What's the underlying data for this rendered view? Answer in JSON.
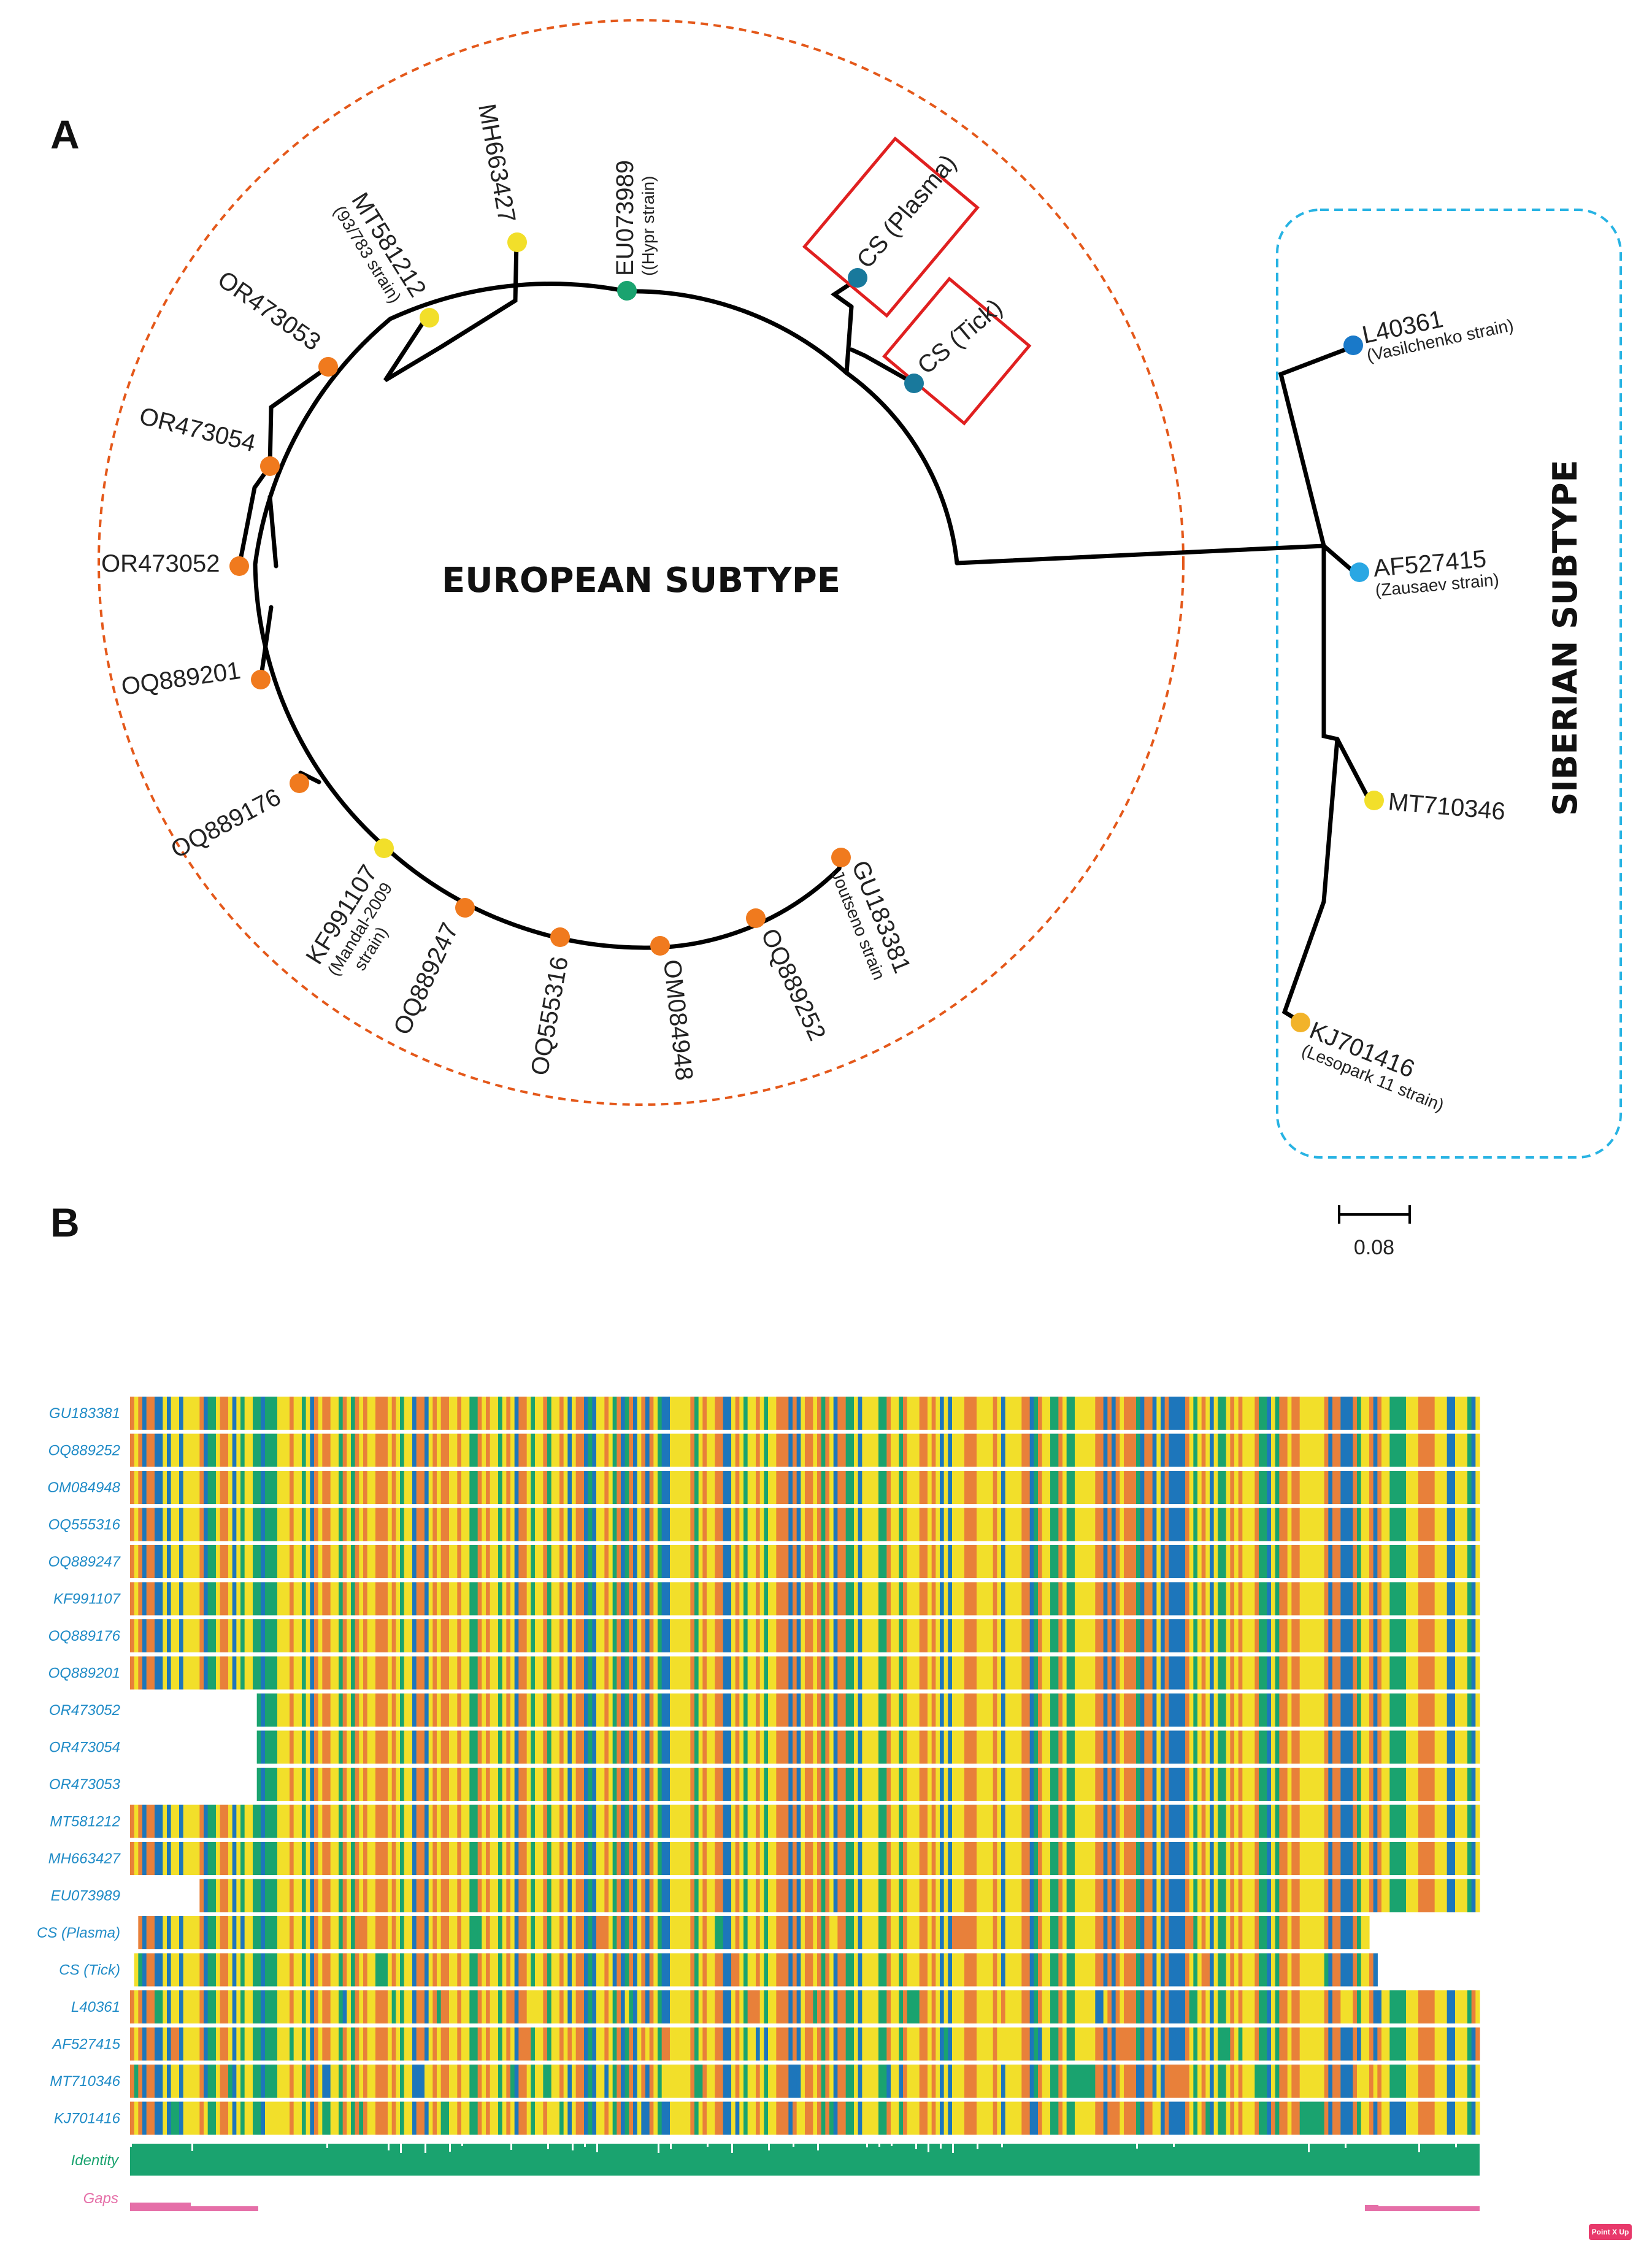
{
  "panel_a_label": "A",
  "panel_b_label": "B",
  "european_subtype_label": "EUROPEAN SUBTYPE",
  "siberian_subtype_label": "SIBERIAN SUBTYPE",
  "scale_bar_label": "0.08",
  "badge_text": "Point X Up",
  "colors": {
    "orange": "#f07a1e",
    "yellow": "#f2df2a",
    "green": "#1aa36f",
    "teal": "#19799c",
    "blue_dark": "#1979c9",
    "blue_light": "#2aa7e3",
    "euro_ring": "#e4581a",
    "siberian_box": "#27b3e3",
    "highlight_box": "#e02020"
  },
  "tree_tips": [
    {
      "id": "GU183381",
      "label": "GU183381",
      "sub": "Joutseno strain",
      "color": "orange"
    },
    {
      "id": "OQ889252",
      "label": "OQ889252",
      "sub": "",
      "color": "orange"
    },
    {
      "id": "OM084948",
      "label": "OM084948",
      "sub": "",
      "color": "orange"
    },
    {
      "id": "OQ555316",
      "label": "OQ555316",
      "sub": "",
      "color": "orange"
    },
    {
      "id": "OQ889247",
      "label": "OQ889247",
      "sub": "",
      "color": "orange"
    },
    {
      "id": "KF991107",
      "label": "KF991107",
      "sub": "(Mandal-2009",
      "sub2": "strain)",
      "color": "yellow"
    },
    {
      "id": "OQ889176",
      "label": "OQ889176",
      "sub": "",
      "color": "orange"
    },
    {
      "id": "OQ889201",
      "label": "OQ889201",
      "sub": "",
      "color": "orange"
    },
    {
      "id": "OR473052",
      "label": "OR473052",
      "sub": "",
      "color": "orange"
    },
    {
      "id": "OR473054",
      "label": "OR473054",
      "sub": "",
      "color": "orange"
    },
    {
      "id": "OR473053",
      "label": "OR473053",
      "sub": "",
      "color": "orange"
    },
    {
      "id": "MT581212",
      "label": "MT581212",
      "sub": "(93/783 strain)",
      "color": "yellow"
    },
    {
      "id": "MH663427",
      "label": "MH663427",
      "sub": "",
      "color": "yellow"
    },
    {
      "id": "EU073989",
      "label": "EU073989",
      "sub": "((Hypr strain)",
      "color": "green"
    },
    {
      "id": "CS_Plasma",
      "label": "CS (Plasma)",
      "sub": "",
      "color": "teal"
    },
    {
      "id": "CS_Tick",
      "label": "CS (Tick)",
      "sub": "",
      "color": "teal"
    },
    {
      "id": "L40361",
      "label": "L40361",
      "sub": "(Vasilchenko strain)",
      "color": "blue_dark"
    },
    {
      "id": "AF527415",
      "label": "AF527415",
      "sub": "(Zausaev strain)",
      "color": "blue_light"
    },
    {
      "id": "MT710346",
      "label": "MT710346",
      "sub": "",
      "color": "yellow"
    },
    {
      "id": "KJ701416",
      "label": "KJ701416",
      "sub": "(Lesopark 11 strain)",
      "color": "yellow"
    }
  ],
  "alignment": {
    "sequences": [
      {
        "name": "GU183381",
        "start": 0.0,
        "end": 1.0
      },
      {
        "name": "OQ889252",
        "start": 0.0,
        "end": 1.0
      },
      {
        "name": "OM084948",
        "start": 0.0,
        "end": 1.0
      },
      {
        "name": "OQ555316",
        "start": 0.0,
        "end": 1.0
      },
      {
        "name": "OQ889247",
        "start": 0.0,
        "end": 1.0
      },
      {
        "name": "KF991107",
        "start": 0.0,
        "end": 1.0
      },
      {
        "name": "OQ889176",
        "start": 0.0,
        "end": 1.0
      },
      {
        "name": "OQ889201",
        "start": 0.0,
        "end": 1.0
      },
      {
        "name": "OR473052",
        "start": 0.095,
        "end": 1.0
      },
      {
        "name": "OR473054",
        "start": 0.095,
        "end": 1.0
      },
      {
        "name": "OR473053",
        "start": 0.095,
        "end": 1.0
      },
      {
        "name": "MT581212",
        "start": 0.0,
        "end": 1.0
      },
      {
        "name": "MH663427",
        "start": 0.0,
        "end": 1.0
      },
      {
        "name": "EU073989",
        "start": 0.052,
        "end": 1.0
      },
      {
        "name": "CS (Plasma)",
        "start": 0.007,
        "end": 0.918
      },
      {
        "name": "CS (Tick)",
        "start": 0.003,
        "end": 0.925
      },
      {
        "name": "L40361",
        "start": 0.0,
        "end": 1.0
      },
      {
        "name": "AF527415",
        "start": 0.0,
        "end": 1.0
      },
      {
        "name": "MT710346",
        "start": 0.0,
        "end": 1.0
      },
      {
        "name": "KJ701416",
        "start": 0.0,
        "end": 1.0
      }
    ],
    "identity_label": "Identity",
    "gaps_label": "Gaps",
    "base_colors": [
      "#f2df2a",
      "#e8803a",
      "#1aa36f",
      "#1d76bb"
    ]
  }
}
